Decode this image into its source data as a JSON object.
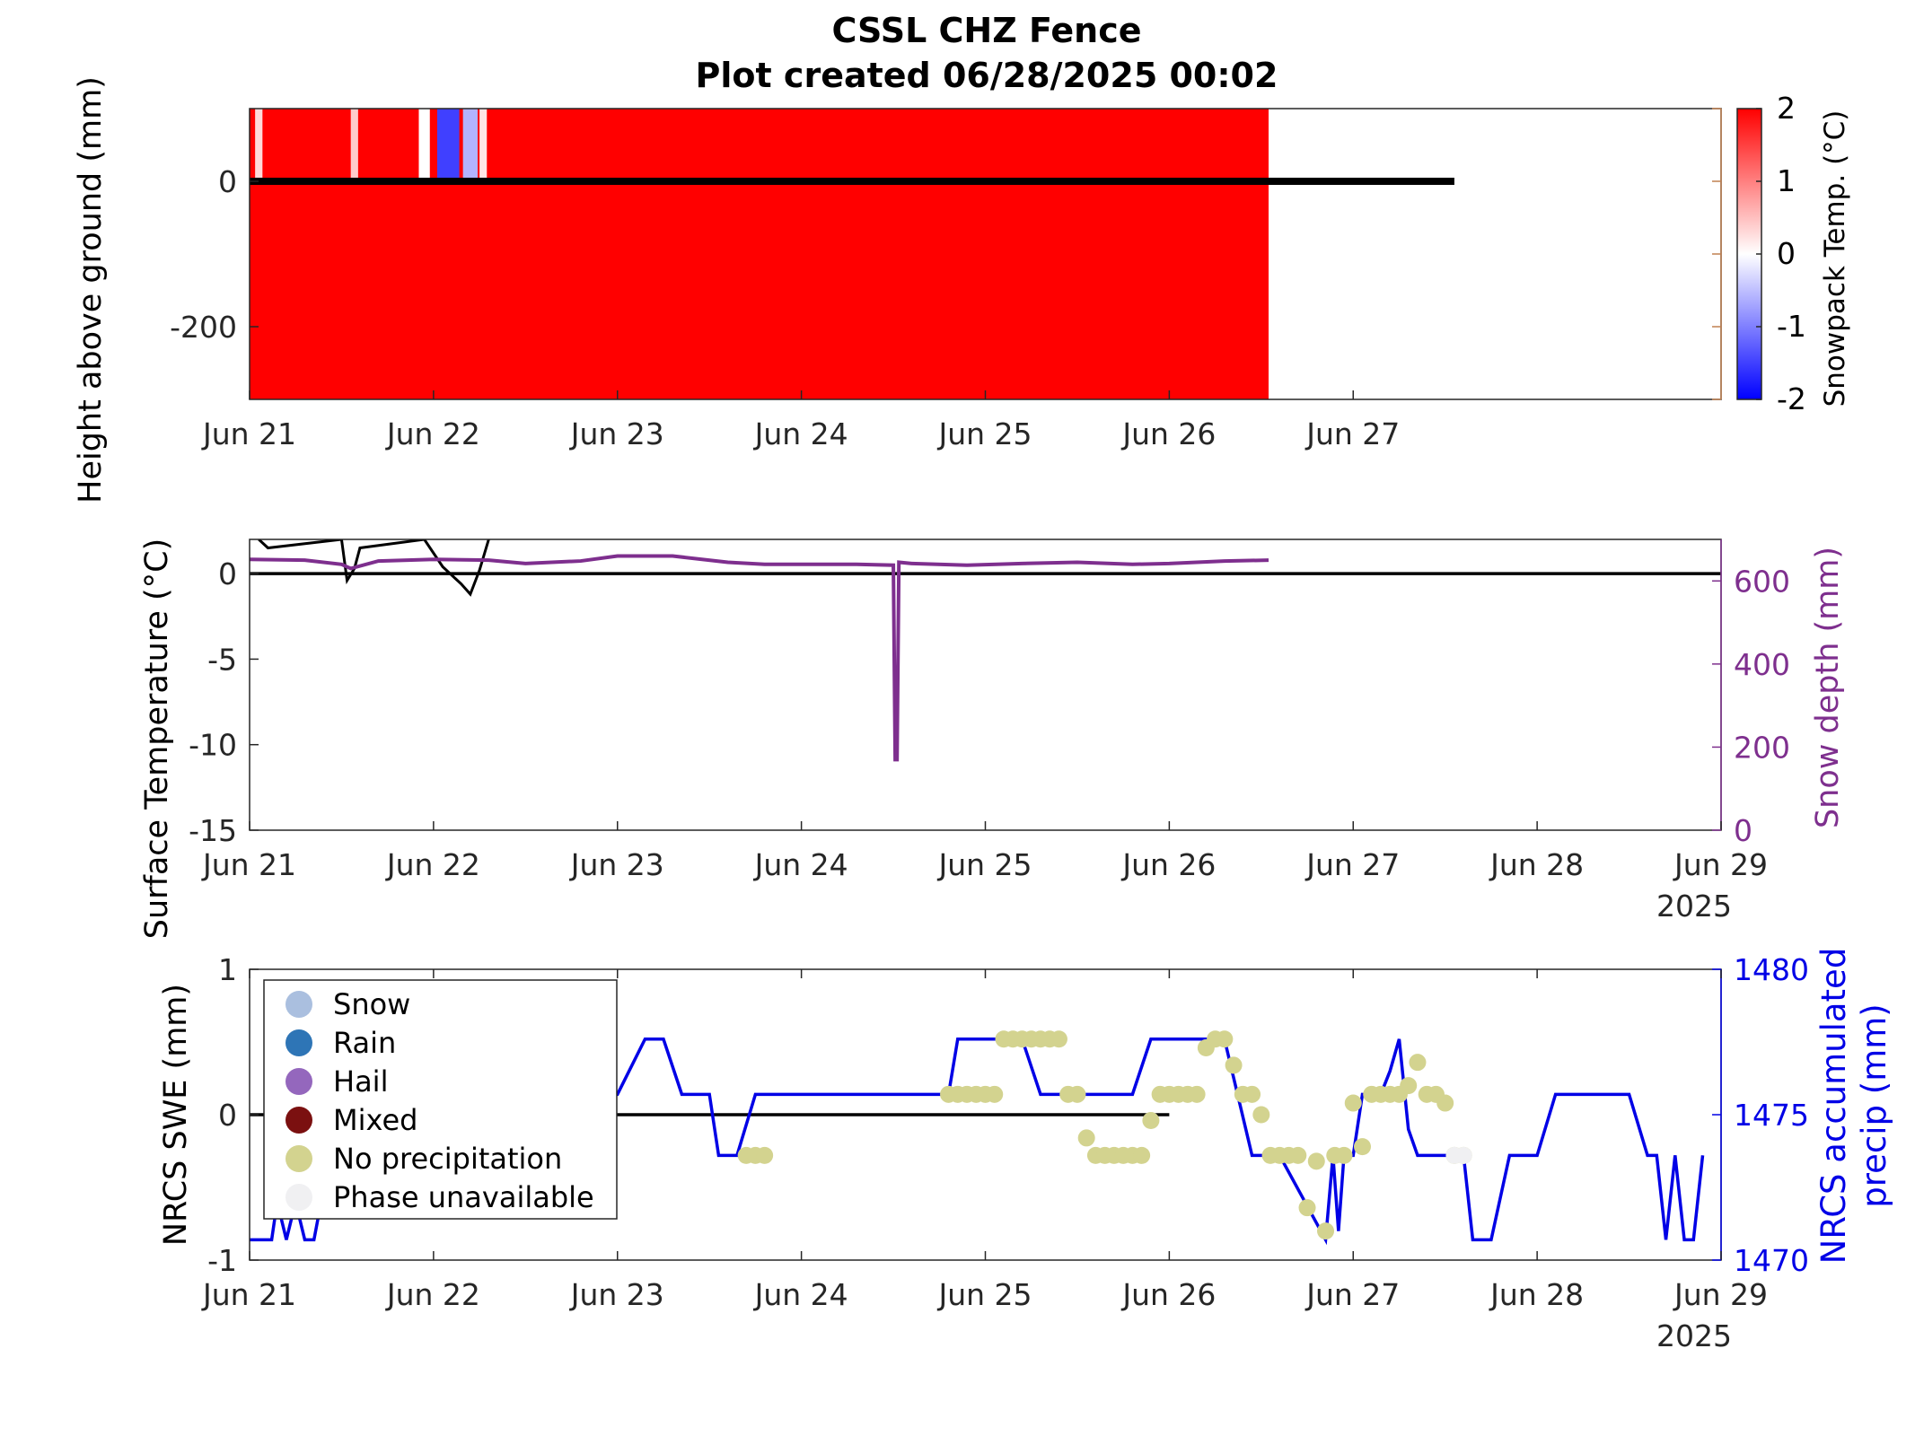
{
  "figure": {
    "title_line1": "CSSL CHZ Fence",
    "title_line2": "Plot created 06/28/2025 00:02"
  },
  "chart_data": [
    {
      "type": "heatmap",
      "ylabel": "Height above ground (mm)",
      "colorbar_label": "Snowpack Temp. (°C)",
      "colorbar_ticks": [
        "2",
        "1",
        "0",
        "-1",
        "-2"
      ],
      "colorbar_range": [
        -2,
        2
      ],
      "colorbar_colors": {
        "low": "#0000ff",
        "mid": "#ffffff",
        "high": "#ff0000"
      },
      "xlim": [
        0,
        8
      ],
      "ylim": [
        -300,
        100
      ],
      "x_tick_values": [
        0,
        1,
        2,
        3,
        4,
        5,
        6
      ],
      "x_ticks": [
        "Jun 21",
        "Jun 22",
        "Jun 23",
        "Jun 24",
        "Jun 25",
        "Jun 26",
        "Jun 27"
      ],
      "y_ticks": [
        "0",
        "-200"
      ],
      "y_tick_values": [
        0,
        -200
      ],
      "data_extent_days": 5.54,
      "default_temp": 2,
      "temp_anomalies": [
        {
          "x": 0.03,
          "w": 0.04,
          "t": 0.3
        },
        {
          "x": 0.55,
          "w": 0.04,
          "t": 0.4
        },
        {
          "x": 0.92,
          "w": 0.06,
          "t": 0.0
        },
        {
          "x": 1.02,
          "w": 0.12,
          "t": -1.5
        },
        {
          "x": 1.16,
          "w": 0.08,
          "t": -0.6
        },
        {
          "x": 1.25,
          "w": 0.04,
          "t": 0.2
        }
      ],
      "ground_line_end_day": 6.55
    },
    {
      "type": "line",
      "ylabel": "Surface Temperature (°C)",
      "y2label": "Snow depth (mm)",
      "xlim": [
        0,
        8
      ],
      "ylim": [
        -15,
        2
      ],
      "y2lim": [
        0,
        700
      ],
      "x_tick_values": [
        0,
        1,
        2,
        3,
        4,
        5,
        6,
        7,
        8
      ],
      "x_ticks": [
        "Jun 21",
        "Jun 22",
        "Jun 23",
        "Jun 24",
        "Jun 25",
        "Jun 26",
        "Jun 27",
        "Jun 28",
        "Jun 29"
      ],
      "year_label": "2025",
      "y_ticks": [
        "0",
        "-5",
        "-10",
        "-15"
      ],
      "y_tick_values": [
        0,
        -5,
        -10,
        -15
      ],
      "y2_ticks": [
        "600",
        "400",
        "200",
        "0"
      ],
      "y2_tick_values": [
        600,
        400,
        200,
        0
      ],
      "series": [
        {
          "color": "#000000",
          "x": [
            0.05,
            0.1,
            0.5,
            0.53,
            0.57,
            0.6,
            0.95,
            1.05,
            1.15,
            1.2,
            1.25,
            1.3
          ],
          "y": [
            2,
            1.5,
            2,
            -0.4,
            0.3,
            1.5,
            2,
            0.4,
            -0.6,
            -1.2,
            0.2,
            2
          ]
        },
        {
          "color": "#7e2f8e",
          "axis": "right",
          "x": [
            0,
            0.3,
            0.5,
            0.55,
            0.7,
            1.0,
            1.3,
            1.5,
            1.8,
            2.0,
            2.3,
            2.6,
            2.8,
            3.0,
            3.3,
            3.5,
            3.51,
            3.52,
            3.53,
            3.6,
            3.9,
            4.2,
            4.5,
            4.8,
            5.0,
            5.3,
            5.54
          ],
          "y": [
            652,
            650,
            640,
            630,
            648,
            652,
            650,
            642,
            648,
            660,
            660,
            645,
            640,
            640,
            640,
            638,
            170,
            170,
            645,
            642,
            638,
            642,
            645,
            640,
            642,
            648,
            650
          ]
        }
      ]
    },
    {
      "type": "line",
      "ylabel": "NRCS SWE (mm)",
      "y2label_line1": "NRCS accumulated",
      "y2label_line2": "precip (mm)",
      "xlim": [
        0,
        8
      ],
      "ylim": [
        -1,
        1
      ],
      "y2lim": [
        1470,
        1480
      ],
      "x_tick_values": [
        0,
        1,
        2,
        3,
        4,
        5,
        6,
        7,
        8
      ],
      "x_ticks": [
        "Jun 21",
        "Jun 22",
        "Jun 23",
        "Jun 24",
        "Jun 25",
        "Jun 26",
        "Jun 27",
        "Jun 28",
        "Jun 29"
      ],
      "year_label": "2025",
      "y_ticks": [
        "1",
        "0",
        "-1"
      ],
      "y_tick_values": [
        1,
        0,
        -1
      ],
      "y2_ticks": [
        "1480",
        "1475",
        "1470"
      ],
      "y2_tick_values": [
        1480,
        1475,
        1470
      ],
      "legend": {
        "placement": "top-left",
        "entries": [
          {
            "label": "Snow",
            "color": "#aabfdf"
          },
          {
            "label": "Rain",
            "color": "#2e75b6"
          },
          {
            "label": "Hail",
            "color": "#9467bd"
          },
          {
            "label": "Mixed",
            "color": "#7b1010"
          },
          {
            "label": "No precipitation",
            "color": "#d3d38f"
          },
          {
            "label": "Phase unavailable",
            "color": "#f0f0f2"
          }
        ]
      },
      "swe_series": {
        "color": "#000000",
        "x": [
          0,
          5.0
        ],
        "y": [
          0,
          0
        ]
      },
      "precip_series": {
        "color": "#0000e6",
        "axis": "right",
        "x": [
          0,
          0.12,
          0.15,
          0.2,
          0.25,
          0.3,
          0.35,
          0.5,
          2.0,
          2.15,
          2.25,
          2.35,
          2.5,
          2.55,
          2.65,
          2.75,
          3.8,
          3.85,
          4.2,
          4.3,
          4.8,
          4.9,
          5.3,
          5.45,
          5.6,
          5.85,
          5.89,
          5.92,
          5.95,
          6.0,
          6.05,
          6.15,
          6.2,
          6.25,
          6.3,
          6.35,
          6.5,
          6.6,
          6.65,
          6.75,
          6.85,
          7.0,
          7.1,
          7.5,
          7.6,
          7.65,
          7.7,
          7.75,
          7.8,
          7.85,
          7.9
        ],
        "y": [
          1470.7,
          1470.7,
          1472.0,
          1470.7,
          1472.0,
          1470.7,
          1470.7,
          1475.7,
          1475.7,
          1477.6,
          1477.6,
          1475.7,
          1475.7,
          1473.6,
          1473.6,
          1475.7,
          1475.7,
          1477.6,
          1477.6,
          1475.7,
          1475.7,
          1477.6,
          1477.6,
          1473.6,
          1473.6,
          1470.7,
          1473.6,
          1471.0,
          1473.6,
          1473.6,
          1475.7,
          1475.7,
          1476.5,
          1477.6,
          1474.5,
          1473.6,
          1473.6,
          1473.6,
          1470.7,
          1470.7,
          1473.6,
          1473.6,
          1475.7,
          1475.7,
          1473.6,
          1473.6,
          1470.7,
          1473.6,
          1470.7,
          1470.7,
          1473.6
        ]
      },
      "phase_points": {
        "no_precip": {
          "x": [
            2.7,
            2.75,
            2.8,
            3.8,
            3.85,
            3.9,
            3.95,
            4.0,
            4.05,
            4.1,
            4.15,
            4.2,
            4.25,
            4.3,
            4.35,
            4.4,
            4.45,
            4.5,
            4.55,
            4.6,
            4.65,
            4.7,
            4.75,
            4.8,
            4.85,
            4.9,
            4.95,
            5.0,
            5.05,
            5.1,
            5.15,
            5.2,
            5.25,
            5.3,
            5.35,
            5.4,
            5.45,
            5.5,
            5.55,
            5.6,
            5.65,
            5.7,
            5.75,
            5.8,
            5.85,
            5.9,
            5.95,
            6.0,
            6.05,
            6.1,
            6.15,
            6.2,
            6.25,
            6.3,
            6.35,
            6.4,
            6.45,
            6.5,
            6.55,
            6.6
          ],
          "y": [
            1473.6,
            1473.6,
            1473.6,
            1475.7,
            1475.7,
            1475.7,
            1475.7,
            1475.7,
            1475.7,
            1477.6,
            1477.6,
            1477.6,
            1477.6,
            1477.6,
            1477.6,
            1477.6,
            1475.7,
            1475.7,
            1474.2,
            1473.6,
            1473.6,
            1473.6,
            1473.6,
            1473.6,
            1473.6,
            1474.8,
            1475.7,
            1475.7,
            1475.7,
            1475.7,
            1475.7,
            1477.3,
            1477.6,
            1477.6,
            1476.7,
            1475.7,
            1475.7,
            1475.0,
            1473.6,
            1473.6,
            1473.6,
            1473.6,
            1471.8,
            1473.4,
            1471.0,
            1473.6,
            1473.6,
            1475.4,
            1473.9,
            1475.7,
            1475.7,
            1475.7,
            1475.7,
            1476.0,
            1476.8,
            1475.7,
            1475.7,
            1475.4,
            1473.6,
            1473.6
          ],
          "color": "#d3d38f"
        },
        "unavailable": {
          "x": [
            6.55,
            6.6
          ],
          "y": [
            1473.6,
            1473.6
          ],
          "color": "#f0f0f2"
        }
      }
    }
  ]
}
